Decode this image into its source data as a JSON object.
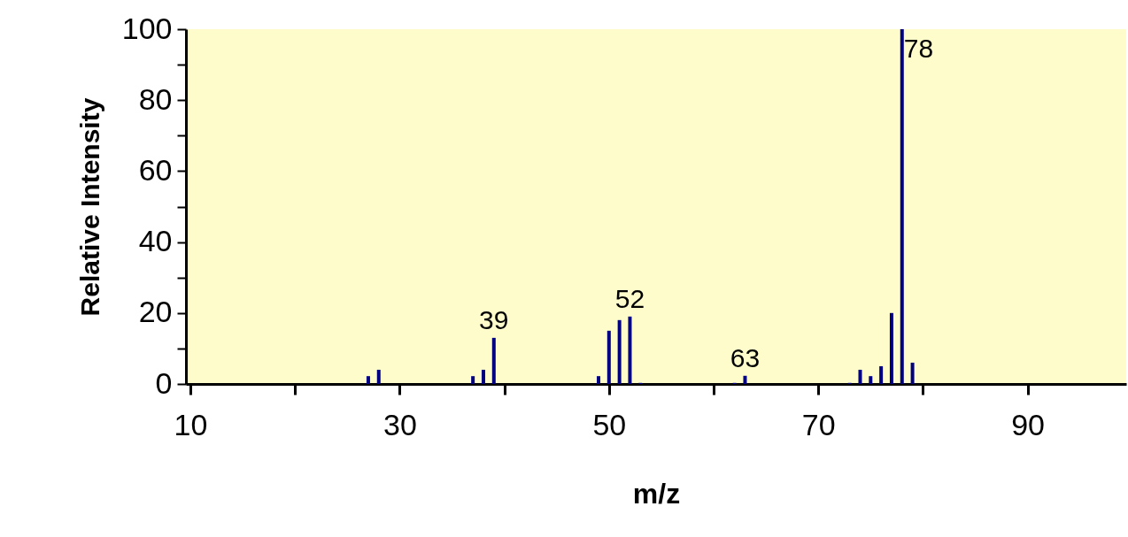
{
  "chart_data": {
    "type": "bar",
    "xlabel": "m/z",
    "ylabel": "Relative Intensity",
    "x": [
      27,
      28,
      37,
      38,
      39,
      49,
      50,
      51,
      52,
      53,
      62,
      63,
      73,
      74,
      75,
      76,
      77,
      78,
      79
    ],
    "values": [
      2.2,
      4,
      2.2,
      4,
      13,
      2.2,
      15,
      18,
      19,
      0.3,
      0.3,
      2.3,
      0.3,
      4,
      2.2,
      5,
      20,
      100,
      6
    ],
    "color": "#000080",
    "xlim": [
      10,
      99
    ],
    "xticks": [
      10,
      {
        "value": 20,
        "label": null
      },
      30,
      {
        "value": 40,
        "label": null
      },
      50,
      {
        "value": 60,
        "label": null
      },
      70,
      {
        "value": 80,
        "label": null
      },
      90
    ],
    "ylim": [
      0,
      100
    ],
    "yticks": [
      0,
      {
        "value": 10,
        "label": null
      },
      20,
      {
        "value": 30,
        "label": null
      },
      40,
      {
        "value": 50,
        "label": null
      },
      60,
      {
        "value": 70,
        "label": null
      },
      80,
      {
        "value": 90,
        "label": null
      },
      100
    ],
    "annotations": [
      {
        "text": "39",
        "x": 39,
        "y": 13
      },
      {
        "text": "52",
        "x": 52,
        "y": 19
      },
      {
        "text": "63",
        "x": 63,
        "y": 2.3
      },
      {
        "text": "78",
        "x": 78,
        "y": 100
      }
    ],
    "grid": false
  }
}
